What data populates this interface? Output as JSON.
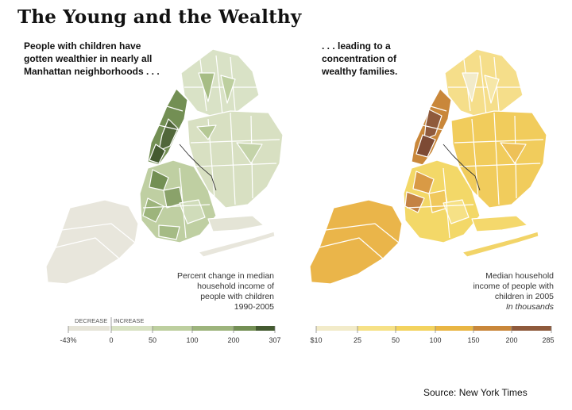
{
  "title": "The Young and the Wealthy",
  "left_map": {
    "subtitle_lines": [
      "People with children have",
      "gotten wealthier in nearly all",
      "Manhattan neighborhoods . . ."
    ],
    "caption_lines": [
      "Percent change in median",
      "household income of",
      "people with children",
      "1990-2005"
    ],
    "legend": {
      "decrease_label": "DECREASE",
      "increase_label": "INCREASE",
      "ticks": [
        "-43%",
        "0",
        "50",
        "100",
        "200",
        "307"
      ],
      "colors": [
        "#e6e4d8",
        "#d8e2c3",
        "#bdcf9f",
        "#9db47c",
        "#738f54",
        "#445a30"
      ]
    }
  },
  "right_map": {
    "subtitle_lines": [
      ". . . leading to a",
      "concentration of",
      "wealthy families."
    ],
    "caption_lines": [
      "Median household",
      "income of people with",
      "children in 2005"
    ],
    "caption_italic": "In thousands",
    "legend": {
      "ticks": [
        "$10",
        "25",
        "50",
        "100",
        "150",
        "200",
        "285"
      ],
      "colors": [
        "#f2ebc9",
        "#f6e186",
        "#f3d35f",
        "#e9b644",
        "#c9873a",
        "#8f5a3c"
      ]
    }
  },
  "source": "Source: New York Times"
}
